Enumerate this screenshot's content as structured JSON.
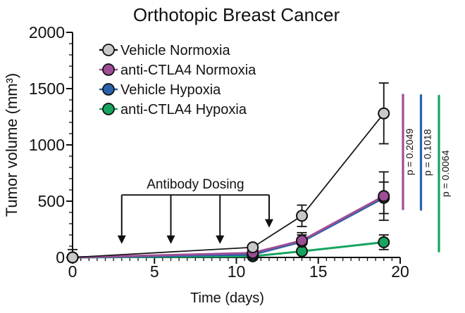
{
  "figure_title": "Orthotopic Breast Cancer",
  "chart_data": {
    "type": "line",
    "title": "Orthotopic Breast Cancer",
    "xlabel": "Time (days)",
    "ylabel": "Tumor volume (mm³)",
    "xlim": [
      0,
      20
    ],
    "ylim": [
      0,
      2000
    ],
    "x_major_ticks": [
      0,
      5,
      10,
      15,
      20
    ],
    "x_minor_step": 0.5,
    "y_major_ticks": [
      0,
      500,
      1000,
      1500,
      2000
    ],
    "y_minor_step": 100,
    "grid": false,
    "legend_position": "top-left-inside",
    "x": [
      0,
      11,
      14,
      19
    ],
    "series": [
      {
        "name": "Vehicle Normoxia",
        "marker_color": "#c8c9ca",
        "line_color": "#1a1a1a",
        "values": [
          0,
          90,
          370,
          1280
        ],
        "errors": [
          70,
          20,
          95,
          270
        ]
      },
      {
        "name": "anti-CTLA4 Normoxia",
        "marker_color": "#9d4e95",
        "line_color": "#9d4e95",
        "values": [
          0,
          40,
          150,
          545
        ],
        "errors": [
          10,
          15,
          70,
          215
        ]
      },
      {
        "name": "Vehicle Hypoxia",
        "marker_color": "#2a62a9",
        "line_color": "#2a62a9",
        "values": [
          0,
          25,
          140,
          530
        ],
        "errors": [
          10,
          15,
          60,
          140
        ]
      },
      {
        "name": "anti-CTLA4 Hypoxia",
        "marker_color": "#17a45f",
        "line_color": "#17a45f",
        "values": [
          0,
          10,
          55,
          135
        ],
        "errors": [
          5,
          10,
          25,
          65
        ]
      }
    ],
    "annotation": {
      "label": "Antibody Dosing",
      "arrow_days": [
        3,
        6,
        9,
        12
      ],
      "bracket_value": 555,
      "arrow_tip_values": [
        120,
        120,
        120,
        265
      ]
    },
    "comparisons": [
      {
        "label": "p = 0.2049",
        "color": "#9d4e95",
        "value_span": [
          430,
          1445
        ]
      },
      {
        "label": "p = 0.1018",
        "color": "#2a62a9",
        "value_span": [
          425,
          1440
        ]
      },
      {
        "label": "p = 0.0064",
        "color": "#17a45f",
        "value_span": [
          55,
          1435
        ]
      }
    ]
  }
}
